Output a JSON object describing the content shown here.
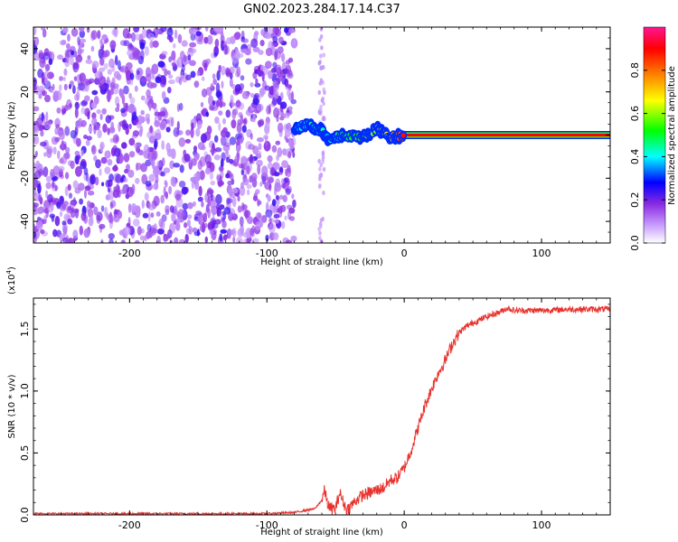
{
  "figure_title": "GN02.2023.284.17.14.C37",
  "chart_data": [
    {
      "type": "heatmap",
      "xlabel": "Height of straight line (km)",
      "ylabel": "Frequency (Hz)",
      "xlim": [
        -270,
        150
      ],
      "ylim": [
        -50,
        50
      ],
      "xticks": [
        -200,
        -100,
        0,
        100
      ],
      "xtick_labels": [
        "-200",
        "-100",
        "0",
        "100"
      ],
      "yticks": [
        -40,
        -20,
        0,
        20,
        40
      ],
      "ytick_labels": [
        "-40",
        "-20",
        "0",
        "20",
        "40"
      ],
      "colorbar": {
        "label": "Normalized spectral amplitude",
        "range": [
          0,
          1
        ],
        "ticks": [
          0.0,
          0.2,
          0.4,
          0.6,
          0.8
        ],
        "tick_labels": [
          "0.0",
          "0.2",
          "0.4",
          "0.6",
          "0.8"
        ],
        "colors": [
          "#ffffff",
          "#c9a0ff",
          "#8a2be2",
          "#0000ff",
          "#00ffff",
          "#00ff00",
          "#ffff00",
          "#ff8000",
          "#ff0000",
          "#ff1493"
        ]
      },
      "noise_region": {
        "x_range": [
          -270,
          -80
        ],
        "amplitude": 0.15
      },
      "gap_region": {
        "x_range": [
          -80,
          -55
        ]
      },
      "signal_line": [
        {
          "x": -80,
          "y": 3,
          "amp": 0.25
        },
        {
          "x": -70,
          "y": 5,
          "amp": 0.35
        },
        {
          "x": -60,
          "y": 2,
          "amp": 0.35
        },
        {
          "x": -55,
          "y": -3,
          "amp": 0.3
        },
        {
          "x": -45,
          "y": 0,
          "amp": 0.4
        },
        {
          "x": -30,
          "y": -1,
          "amp": 0.45
        },
        {
          "x": -20,
          "y": 3,
          "amp": 0.5
        },
        {
          "x": -10,
          "y": -1,
          "amp": 0.6
        },
        {
          "x": 0,
          "y": 0,
          "amp": 0.8
        },
        {
          "x": 150,
          "y": 0,
          "amp": 1.0
        }
      ],
      "grid": false
    },
    {
      "type": "line",
      "xlabel": "Height of straight line (km)",
      "ylabel": "SNR (10 * v/v)",
      "y_scale_label": "(x10",
      "y_scale_exponent": "4",
      "y_scale_suffix": ")",
      "xlim": [
        -270,
        150
      ],
      "ylim": [
        0,
        1.75
      ],
      "xticks": [
        -200,
        -100,
        0,
        100
      ],
      "xtick_labels": [
        "-200",
        "-100",
        "0",
        "100"
      ],
      "yticks": [
        0.0,
        0.5,
        1.0,
        1.5
      ],
      "ytick_labels": [
        "0.0",
        "0.5",
        "1.0",
        "1.5"
      ],
      "line_color": "#e8322d",
      "series": [
        {
          "x": [
            -270,
            -250,
            -200,
            -150,
            -100,
            -80,
            -65,
            -60,
            -58,
            -56,
            -54,
            -50,
            -47,
            -45,
            -42,
            -40,
            -35,
            -30,
            -25,
            -20,
            -15,
            -10,
            -5,
            0,
            5,
            10,
            15,
            20,
            25,
            30,
            35,
            40,
            45,
            50,
            60,
            70,
            75,
            80,
            100,
            120,
            150
          ],
          "y": [
            0.01,
            0.01,
            0.01,
            0.01,
            0.01,
            0.02,
            0.05,
            0.12,
            0.2,
            0.1,
            0.05,
            0.05,
            0.18,
            0.12,
            0.04,
            0.06,
            0.12,
            0.16,
            0.18,
            0.2,
            0.22,
            0.28,
            0.3,
            0.38,
            0.52,
            0.7,
            0.88,
            1.02,
            1.15,
            1.25,
            1.38,
            1.47,
            1.52,
            1.55,
            1.6,
            1.64,
            1.67,
            1.65,
            1.65,
            1.66,
            1.66
          ]
        }
      ],
      "grid": false
    }
  ]
}
